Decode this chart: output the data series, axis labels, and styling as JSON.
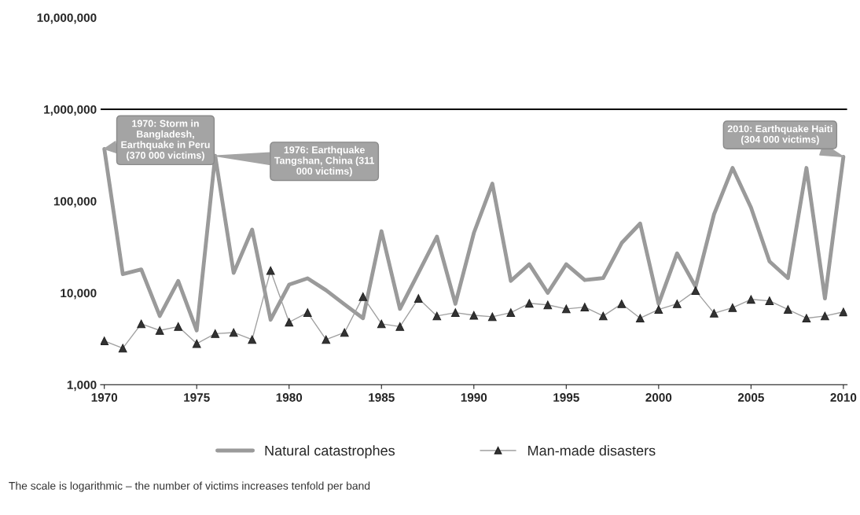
{
  "chart_data": {
    "type": "line",
    "x": [
      1970,
      1971,
      1972,
      1973,
      1974,
      1975,
      1976,
      1977,
      1978,
      1979,
      1980,
      1981,
      1982,
      1983,
      1984,
      1985,
      1986,
      1987,
      1988,
      1989,
      1990,
      1991,
      1992,
      1993,
      1994,
      1995,
      1996,
      1997,
      1998,
      1999,
      2000,
      2001,
      2002,
      2003,
      2004,
      2005,
      2006,
      2007,
      2008,
      2009,
      2010
    ],
    "series": [
      {
        "name": "Natural catastrophes",
        "color": "#9a9a9a",
        "marker": "none",
        "values": [
          370000,
          16000,
          18000,
          5600,
          13500,
          3900,
          311000,
          16500,
          49000,
          5100,
          12300,
          14400,
          10700,
          7500,
          5300,
          47000,
          6700,
          16500,
          41000,
          7600,
          45000,
          155000,
          13500,
          20500,
          10000,
          20500,
          13800,
          14500,
          35000,
          57000,
          7600,
          27000,
          11700,
          72000,
          230000,
          85000,
          22000,
          14500,
          230000,
          8700,
          304000
        ]
      },
      {
        "name": "Man-made disasters",
        "color": "#a0a0a0",
        "marker": "triangle",
        "values": [
          3000,
          2500,
          4600,
          3900,
          4300,
          2800,
          3600,
          3700,
          3100,
          17500,
          4800,
          6100,
          3100,
          3700,
          9100,
          4600,
          4300,
          8700,
          5600,
          6100,
          5700,
          5500,
          6100,
          7700,
          7400,
          6700,
          7000,
          5600,
          7600,
          5300,
          6600,
          7600,
          10600,
          6000,
          6900,
          8500,
          8200,
          6600,
          5300,
          5600,
          6200
        ]
      }
    ],
    "log": "y",
    "ylim": [
      1000,
      10000000
    ],
    "yticks": [
      {
        "value": 1000,
        "label": "1,000"
      },
      {
        "value": 10000,
        "label": "10,000"
      },
      {
        "value": 100000,
        "label": "100,000"
      },
      {
        "value": 1000000,
        "label": "1,000,000"
      },
      {
        "value": 10000000,
        "label": "10,000,000"
      }
    ],
    "xlim": [
      1969.8,
      2010.2
    ],
    "xticks": [
      1970,
      1975,
      1980,
      1985,
      1990,
      1995,
      2000,
      2005,
      2010
    ],
    "ref_lines": [
      {
        "axis": "y",
        "value": 1000000,
        "color": "#000000"
      }
    ],
    "grid": false,
    "legend": "bottom",
    "annotations": [
      {
        "text": "1970: Storm in Bangladesh, Earthquake in Peru (370 000 victims)",
        "x": 1970,
        "y": 370000
      },
      {
        "text": "1976: Earthquake Tangshan, China (311 000 victims)",
        "x": 1976,
        "y": 311000
      },
      {
        "text": "2010: Earthquake Haiti (304 000 victims)",
        "x": 2010,
        "y": 304000
      },
      "The scale is logarithmic – the number of victims increases tenfold per band"
    ]
  }
}
